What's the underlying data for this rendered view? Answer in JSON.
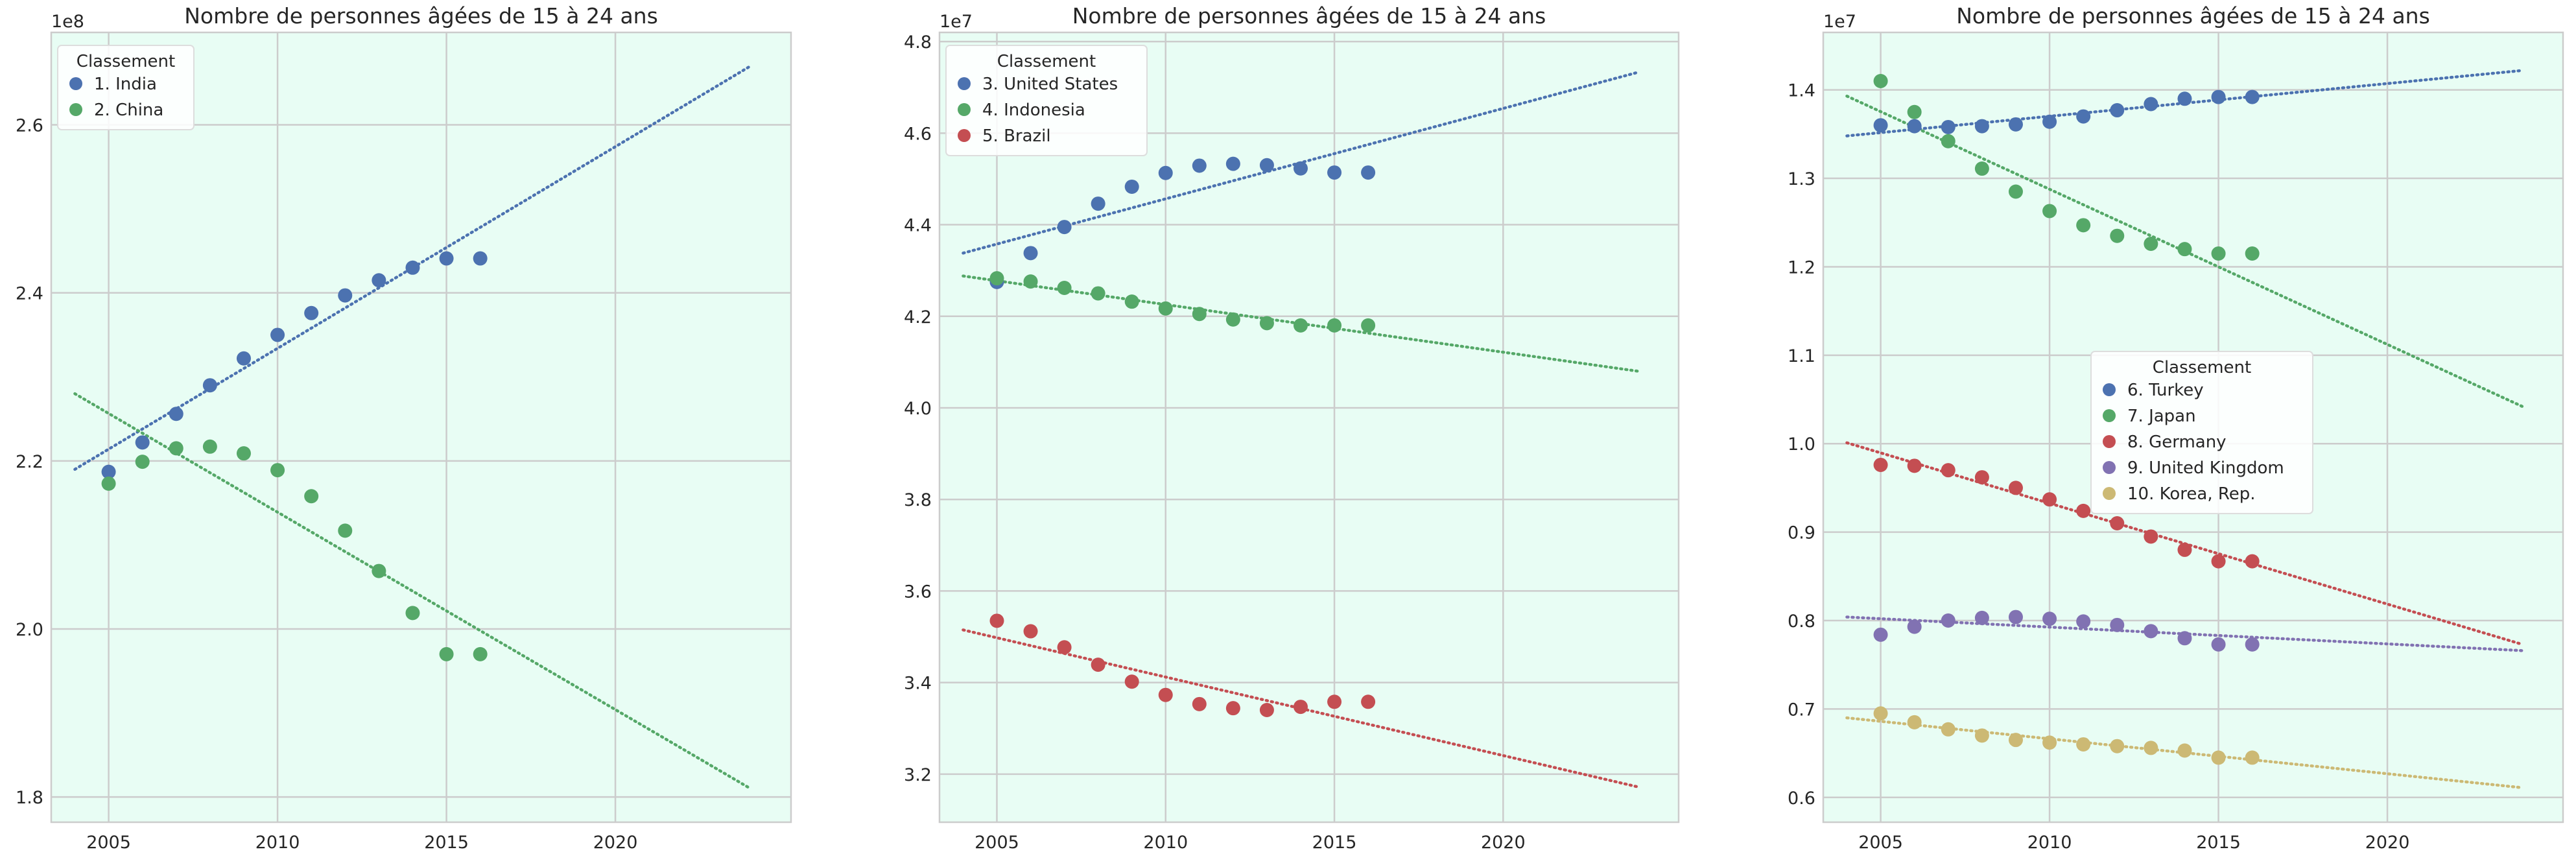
{
  "chart_data": [
    {
      "type": "scatter",
      "title": "Nombre de personnes âgées de 15 à 24 ans",
      "xlabel": "",
      "ylabel": "",
      "y_offset_label": "1e8",
      "x_ticks": [
        2005,
        2010,
        2015,
        2020
      ],
      "y_ticks": [
        1.8,
        2.0,
        2.2,
        2.4,
        2.6
      ],
      "y_tick_labels": [
        "1.8",
        "2.0",
        "2.2",
        "2.4",
        "2.6"
      ],
      "xlim": [
        2003.3,
        2025.2
      ],
      "ylim": [
        1.77,
        2.71
      ],
      "grid": true,
      "trendline_style": "dotted",
      "legend_title": "Classement",
      "legend_position": "top-left",
      "series": [
        {
          "name": "1. India",
          "color": "#4c72b0",
          "x": [
            2005,
            2006,
            2007,
            2008,
            2009,
            2010,
            2011,
            2012,
            2013,
            2014,
            2015,
            2016
          ],
          "y": [
            2.187,
            2.222,
            2.256,
            2.29,
            2.322,
            2.35,
            2.376,
            2.397,
            2.415,
            2.43,
            2.441,
            2.441
          ],
          "trend": {
            "x": [
              2004,
              2024
            ],
            "y": [
              2.19,
              2.67
            ]
          }
        },
        {
          "name": "2. China",
          "color": "#55a868",
          "x": [
            2005,
            2006,
            2007,
            2008,
            2009,
            2010,
            2011,
            2012,
            2013,
            2014,
            2015,
            2016
          ],
          "y": [
            2.173,
            2.199,
            2.215,
            2.217,
            2.209,
            2.189,
            2.158,
            2.117,
            2.069,
            2.019,
            1.97,
            1.97
          ],
          "trend": {
            "x": [
              2004,
              2024
            ],
            "y": [
              2.28,
              1.81
            ]
          }
        }
      ]
    },
    {
      "type": "scatter",
      "title": "Nombre de personnes âgées de 15 à 24 ans",
      "xlabel": "",
      "ylabel": "",
      "y_offset_label": "1e7",
      "x_ticks": [
        2005,
        2010,
        2015,
        2020
      ],
      "y_ticks": [
        3.2,
        3.4,
        3.6,
        3.8,
        4.0,
        4.2,
        4.4,
        4.6,
        4.8
      ],
      "y_tick_labels": [
        "3.2",
        "3.4",
        "3.6",
        "3.8",
        "4.0",
        "4.2",
        "4.4",
        "4.6",
        "4.8"
      ],
      "xlim": [
        2003.3,
        2025.2
      ],
      "ylim": [
        3.095,
        4.82
      ],
      "grid": true,
      "trendline_style": "dotted",
      "legend_title": "Classement",
      "legend_position": "top-left",
      "series": [
        {
          "name": "3. United States",
          "color": "#4c72b0",
          "x": [
            2005,
            2006,
            2007,
            2008,
            2009,
            2010,
            2011,
            2012,
            2013,
            2014,
            2015,
            2016
          ],
          "y": [
            4.275,
            4.338,
            4.395,
            4.446,
            4.483,
            4.513,
            4.529,
            4.533,
            4.53,
            4.523,
            4.514,
            4.514
          ],
          "trend": {
            "x": [
              2004,
              2024
            ],
            "y": [
              4.338,
              4.733
            ]
          }
        },
        {
          "name": "4. Indonesia",
          "color": "#55a868",
          "x": [
            2005,
            2006,
            2007,
            2008,
            2009,
            2010,
            2011,
            2012,
            2013,
            2014,
            2015,
            2016
          ],
          "y": [
            4.283,
            4.276,
            4.262,
            4.25,
            4.232,
            4.217,
            4.205,
            4.193,
            4.185,
            4.18,
            4.18,
            4.18
          ],
          "trend": {
            "x": [
              2004,
              2024
            ],
            "y": [
              4.288,
              4.08
            ]
          }
        },
        {
          "name": "5. Brazil",
          "color": "#c44e52",
          "x": [
            2005,
            2006,
            2007,
            2008,
            2009,
            2010,
            2011,
            2012,
            2013,
            2014,
            2015,
            2016
          ],
          "y": [
            3.535,
            3.512,
            3.477,
            3.439,
            3.402,
            3.373,
            3.353,
            3.344,
            3.34,
            3.347,
            3.358,
            3.358
          ],
          "trend": {
            "x": [
              2004,
              2024
            ],
            "y": [
              3.515,
              3.172
            ]
          }
        }
      ]
    },
    {
      "type": "scatter",
      "title": "Nombre de personnes âgées de 15 à 24 ans",
      "xlabel": "",
      "ylabel": "",
      "y_offset_label": "1e7",
      "x_ticks": [
        2005,
        2010,
        2015,
        2020
      ],
      "y_ticks": [
        0.6,
        0.7,
        0.8,
        0.9,
        1.0,
        1.1,
        1.2,
        1.3,
        1.4
      ],
      "y_tick_labels": [
        "0.6",
        "0.7",
        "0.8",
        "0.9",
        "1.0",
        "1.1",
        "1.2",
        "1.3",
        "1.4"
      ],
      "xlim": [
        2003.3,
        2025.2
      ],
      "ylim": [
        0.572,
        1.465
      ],
      "grid": true,
      "trendline_style": "dotted",
      "legend_title": "Classement",
      "legend_position": "center",
      "series": [
        {
          "name": "6. Turkey",
          "color": "#4c72b0",
          "x": [
            2005,
            2006,
            2007,
            2008,
            2009,
            2010,
            2011,
            2012,
            2013,
            2014,
            2015,
            2016
          ],
          "y": [
            1.36,
            1.359,
            1.358,
            1.359,
            1.361,
            1.364,
            1.37,
            1.377,
            1.384,
            1.39,
            1.392,
            1.392
          ],
          "trend": {
            "x": [
              2004,
              2024
            ],
            "y": [
              1.348,
              1.422
            ]
          }
        },
        {
          "name": "7. Japan",
          "color": "#55a868",
          "x": [
            2005,
            2006,
            2007,
            2008,
            2009,
            2010,
            2011,
            2012,
            2013,
            2014,
            2015,
            2016
          ],
          "y": [
            1.41,
            1.375,
            1.342,
            1.311,
            1.285,
            1.263,
            1.247,
            1.235,
            1.226,
            1.22,
            1.215,
            1.215
          ],
          "trend": {
            "x": [
              2004,
              2024
            ],
            "y": [
              1.393,
              1.042
            ]
          }
        },
        {
          "name": "8. Germany",
          "color": "#c44e52",
          "x": [
            2005,
            2006,
            2007,
            2008,
            2009,
            2010,
            2011,
            2012,
            2013,
            2014,
            2015,
            2016
          ],
          "y": [
            0.976,
            0.975,
            0.97,
            0.962,
            0.95,
            0.937,
            0.924,
            0.91,
            0.895,
            0.88,
            0.867,
            0.867
          ],
          "trend": {
            "x": [
              2004,
              2024
            ],
            "y": [
              1.001,
              0.773
            ]
          }
        },
        {
          "name": "9. United Kingdom",
          "color": "#8172b2",
          "x": [
            2005,
            2006,
            2007,
            2008,
            2009,
            2010,
            2011,
            2012,
            2013,
            2014,
            2015,
            2016
          ],
          "y": [
            0.784,
            0.793,
            0.8,
            0.803,
            0.804,
            0.802,
            0.799,
            0.795,
            0.788,
            0.78,
            0.773,
            0.773
          ],
          "trend": {
            "x": [
              2004,
              2024
            ],
            "y": [
              0.804,
              0.766
            ]
          }
        },
        {
          "name": "10. Korea, Rep.",
          "color": "#ccb974",
          "x": [
            2005,
            2006,
            2007,
            2008,
            2009,
            2010,
            2011,
            2012,
            2013,
            2014,
            2015,
            2016
          ],
          "y": [
            0.695,
            0.685,
            0.677,
            0.67,
            0.665,
            0.662,
            0.66,
            0.658,
            0.656,
            0.653,
            0.645,
            0.645
          ],
          "trend": {
            "x": [
              2004,
              2024
            ],
            "y": [
              0.69,
              0.611
            ]
          }
        }
      ]
    }
  ]
}
